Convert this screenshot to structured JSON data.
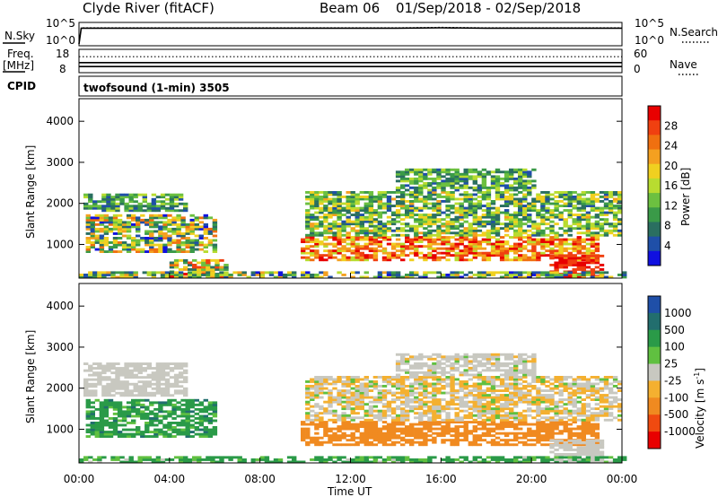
{
  "header": {
    "station": "Clyde River (fitACF)",
    "beam": "Beam 06",
    "date_range": "01/Sep/2018 - 02/Sep/2018"
  },
  "noise_panel": {
    "left_label": "N.Sky",
    "left_ticks": [
      "10^5",
      "10^0"
    ],
    "right_label": "N.Search",
    "right_ticks": [
      "10^5",
      "10^0"
    ]
  },
  "freq_panel": {
    "left_label_line1": "Freq.",
    "left_label_line2": "[MHz]",
    "left_ticks": [
      "18",
      "8"
    ],
    "right_label": "Nave",
    "right_ticks": [
      "60",
      "0"
    ]
  },
  "cpid": {
    "label": "CPID",
    "value": "twofsound (1-min) 3505"
  },
  "x_axis": {
    "label": "Time UT",
    "ticks": [
      "00:00",
      "04:00",
      "08:00",
      "12:00",
      "16:00",
      "20:00",
      "00:00"
    ]
  },
  "colors": {
    "power_scale": [
      "#1010e0",
      "#1f4fa8",
      "#2a6f60",
      "#3a9a48",
      "#6cc040",
      "#b8dc30",
      "#f0d020",
      "#f4a020",
      "#f07010",
      "#f04010",
      "#e80000"
    ],
    "velocity_scale": [
      "#e80000",
      "#f04a10",
      "#f08a20",
      "#f4b030",
      "#c8c8c0",
      "#60c040",
      "#2a9a48",
      "#226e6e",
      "#1f4fa8"
    ]
  },
  "chart_data": [
    {
      "type": "line",
      "panel": "noise",
      "title": "",
      "ylabel": "N.Sky",
      "ylabel_right": "N.Search",
      "ylim": [
        0,
        5
      ],
      "yscale": "log",
      "x_unit": "hours UT",
      "xlim": [
        0,
        24
      ],
      "series": [
        {
          "name": "N.Sky",
          "style": "solid",
          "x": [
            0,
            0.1,
            2,
            4,
            6,
            8,
            10,
            12,
            14,
            16,
            18,
            20,
            22,
            24
          ],
          "y": [
            0,
            4.0,
            4.0,
            4.0,
            4.0,
            4.0,
            4.0,
            4.0,
            4.0,
            4.1,
            4.0,
            4.0,
            4.0,
            4.0
          ]
        },
        {
          "name": "N.Search",
          "style": "dotted",
          "x": [
            0,
            0.1,
            2,
            4,
            6,
            8,
            10,
            12,
            14,
            16,
            18,
            20,
            22,
            24
          ],
          "y": [
            0,
            4.1,
            4.1,
            4.1,
            4.1,
            4.1,
            4.1,
            4.1,
            4.1,
            4.2,
            4.1,
            4.1,
            4.1,
            4.1
          ]
        }
      ]
    },
    {
      "type": "line",
      "panel": "frequency",
      "title": "",
      "ylabel": "Freq. [MHz]",
      "ylabel_right": "Nave",
      "ylim": [
        8,
        18
      ],
      "ylim_right": [
        0,
        60
      ],
      "x_unit": "hours UT",
      "xlim": [
        0,
        24
      ],
      "series": [
        {
          "name": "Freq.",
          "style": "solid",
          "x": [
            0,
            24
          ],
          "y": [
            10.2,
            10.2
          ]
        },
        {
          "name": "Freq.",
          "style": "solid",
          "x": [
            0,
            24
          ],
          "y": [
            12.2,
            12.2
          ]
        },
        {
          "name": "Nave",
          "style": "dotted",
          "x": [
            0,
            24
          ],
          "y_right": [
            43,
            43
          ]
        }
      ]
    },
    {
      "type": "heatmap",
      "panel": "power",
      "title": "",
      "xlabel": "",
      "ylabel": "Slant Range [km]",
      "x_unit": "hours UT",
      "xlim": [
        0,
        24
      ],
      "ylim": [
        180,
        4550
      ],
      "yticks": [
        1000,
        2000,
        3000,
        4000
      ],
      "colorbar": {
        "label": "Power [dB]",
        "ticks": [
          4,
          8,
          12,
          16,
          20,
          24,
          28
        ],
        "range": [
          0,
          32
        ]
      },
      "regions": [
        {
          "t0": 0.3,
          "t1": 6.0,
          "r0": 800,
          "r1": 1700,
          "v": 14,
          "dv": 12
        },
        {
          "t0": 0.2,
          "t1": 4.8,
          "r0": 1800,
          "r1": 2200,
          "v": 10,
          "dv": 6
        },
        {
          "t0": 9.8,
          "t1": 22.8,
          "r0": 600,
          "r1": 1200,
          "v": 24,
          "dv": 8
        },
        {
          "t0": 10.0,
          "t1": 23.8,
          "r0": 1200,
          "r1": 2300,
          "v": 13,
          "dv": 8
        },
        {
          "t0": 14.0,
          "t1": 20.0,
          "r0": 2300,
          "r1": 2850,
          "v": 11,
          "dv": 6
        },
        {
          "t0": 20.8,
          "t1": 23.0,
          "r0": 200,
          "r1": 700,
          "v": 29,
          "dv": 3
        },
        {
          "t0": 4.0,
          "t1": 6.5,
          "r0": 200,
          "r1": 600,
          "v": 18,
          "dv": 12
        },
        {
          "t0": 0.0,
          "t1": 24.0,
          "r0": 180,
          "r1": 320,
          "v": 12,
          "dv": 10
        }
      ]
    },
    {
      "type": "heatmap",
      "panel": "velocity",
      "title": "",
      "xlabel": "Time UT",
      "ylabel": "Slant Range [km]",
      "x_unit": "hours UT",
      "xlim": [
        0,
        24
      ],
      "ylim": [
        180,
        4550
      ],
      "yticks": [
        1000,
        2000,
        3000,
        4000
      ],
      "colorbar": {
        "label": "Velocity [m s^-1]",
        "ticks": [
          1000,
          500,
          100,
          25,
          -25,
          -100,
          -500,
          -1000
        ]
      },
      "regions": [
        {
          "t0": 0.3,
          "t1": 6.0,
          "r0": 800,
          "r1": 1700,
          "v": 300,
          "dv": 250
        },
        {
          "t0": 0.2,
          "t1": 4.8,
          "r0": 1800,
          "r1": 2600,
          "v": 0,
          "dv": 20
        },
        {
          "t0": 9.8,
          "t1": 22.8,
          "r0": 600,
          "r1": 1200,
          "v": -250,
          "dv": 150
        },
        {
          "t0": 10.0,
          "t1": 23.8,
          "r0": 1200,
          "r1": 2300,
          "v": -20,
          "dv": 60
        },
        {
          "t0": 14.0,
          "t1": 20.0,
          "r0": 2300,
          "r1": 2850,
          "v": 0,
          "dv": 30
        },
        {
          "t0": 20.8,
          "t1": 23.0,
          "r0": 200,
          "r1": 700,
          "v": 0,
          "dv": 15
        },
        {
          "t0": 0.0,
          "t1": 24.0,
          "r0": 180,
          "r1": 320,
          "v": 150,
          "dv": 150
        }
      ]
    }
  ]
}
